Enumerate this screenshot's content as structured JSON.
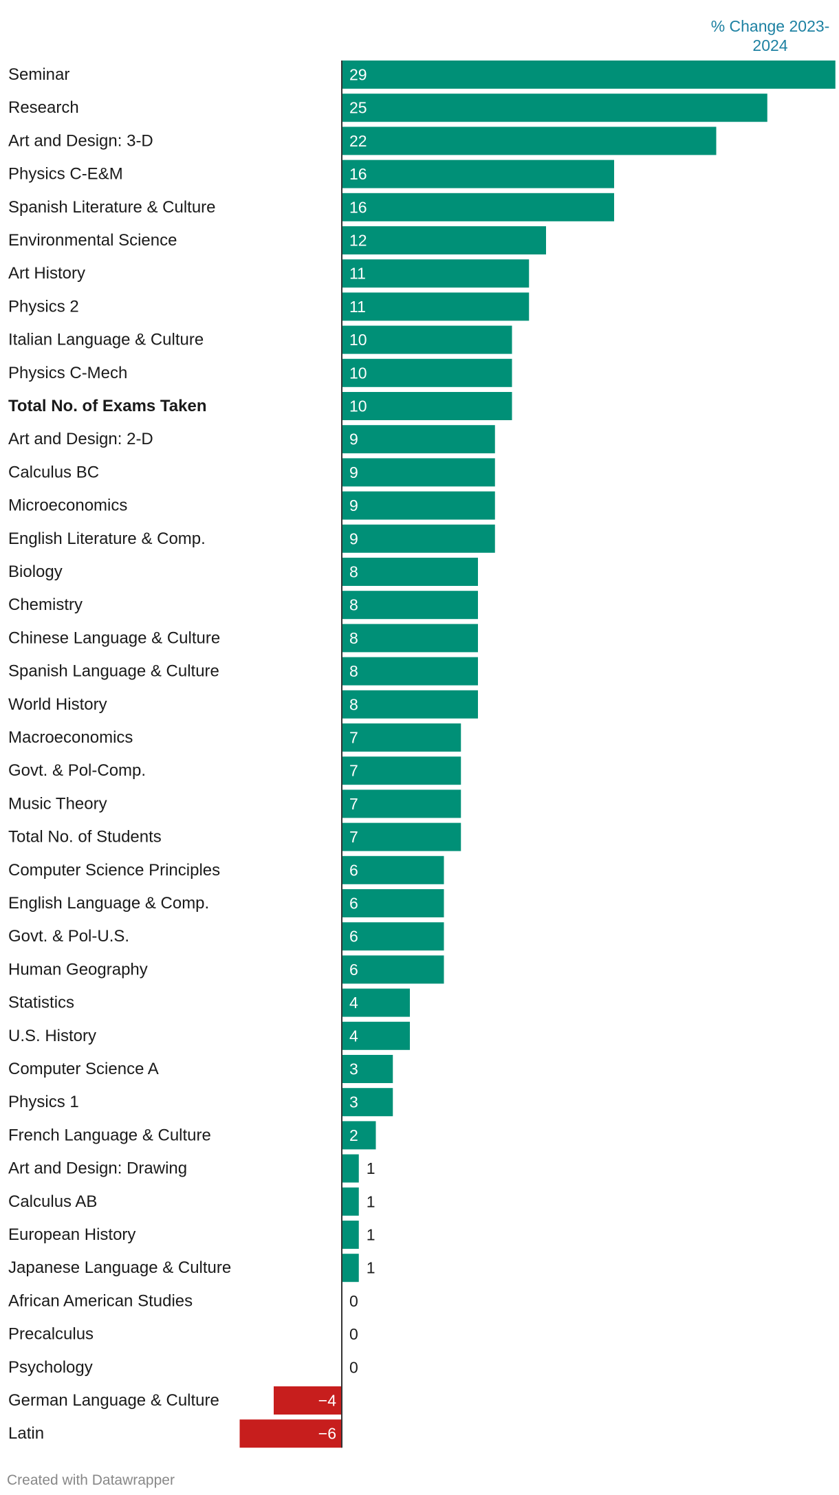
{
  "chart_data": {
    "type": "bar",
    "orientation": "horizontal",
    "column_header": "% Change 2023-2024",
    "categories": [
      "Seminar",
      "Research",
      "Art and Design: 3-D",
      "Physics C-E&M",
      "Spanish Literature & Culture",
      "Environmental Science",
      "Art History",
      "Physics 2",
      "Italian Language & Culture",
      "Physics C-Mech",
      "Total No. of Exams Taken",
      "Art and Design: 2-D",
      "Calculus BC",
      "Microeconomics",
      "English Literature & Comp.",
      "Biology",
      "Chemistry",
      "Chinese Language & Culture",
      "Spanish Language & Culture",
      "World History",
      "Macroeconomics",
      "Govt. & Pol-Comp.",
      "Music Theory",
      "Total No. of Students",
      "Computer Science Principles",
      "English Language & Comp.",
      "Govt. & Pol-U.S.",
      "Human Geography",
      "Statistics",
      "U.S. History",
      "Computer Science A",
      "Physics 1",
      "French Language & Culture",
      "Art and Design: Drawing",
      "Calculus AB",
      "European History",
      "Japanese Language & Culture",
      "African American Studies",
      "Precalculus",
      "Psychology",
      "German Language & Culture",
      "Latin"
    ],
    "values": [
      29,
      25,
      22,
      16,
      16,
      12,
      11,
      11,
      10,
      10,
      10,
      9,
      9,
      9,
      9,
      8,
      8,
      8,
      8,
      8,
      7,
      7,
      7,
      7,
      6,
      6,
      6,
      6,
      4,
      4,
      3,
      3,
      2,
      1,
      1,
      1,
      1,
      0,
      0,
      0,
      -4,
      -6
    ],
    "value_labels": [
      "29",
      "25",
      "22",
      "16",
      "16",
      "12",
      "11",
      "11",
      "10",
      "10",
      "10",
      "9",
      "9",
      "9",
      "9",
      "8",
      "8",
      "8",
      "8",
      "8",
      "7",
      "7",
      "7",
      "7",
      "6",
      "6",
      "6",
      "6",
      "4",
      "4",
      "3",
      "3",
      "2",
      "1",
      "1",
      "1",
      "1",
      "0",
      "0",
      "0",
      "−4",
      "−6"
    ],
    "bold_categories": [
      "Total No. of Exams Taken"
    ],
    "xlim": [
      -6,
      29
    ],
    "colors": {
      "positive": "#009077",
      "negative": "#c71e1d",
      "axis": "#333333",
      "header": "#1d81a2"
    }
  },
  "footer": "Created with Datawrapper"
}
